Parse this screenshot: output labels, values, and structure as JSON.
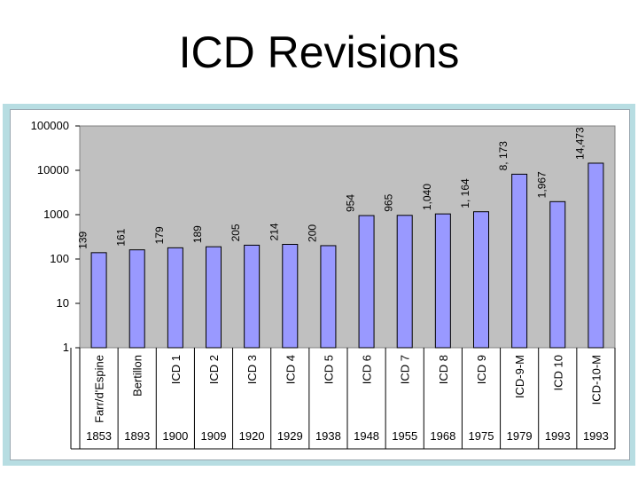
{
  "slide": {
    "title": "ICD Revisions"
  },
  "chart_data": {
    "type": "bar",
    "y_scale": "log",
    "ylim": [
      1,
      100000
    ],
    "grid": false,
    "legend": "none",
    "y_ticks": [
      "100000",
      "10000",
      "1000",
      "100",
      "10",
      "1"
    ],
    "categories": [
      "Farr/d'Espine",
      "Bertillon",
      "ICD 1",
      "ICD 2",
      "ICD 3",
      "ICD 4",
      "ICD 5",
      "ICD 6",
      "ICD 7",
      "ICD 8",
      "ICD 9",
      "ICD-9-M",
      "ICD 10",
      "ICD-10-M"
    ],
    "years": [
      "1853",
      "1893",
      "1900",
      "1909",
      "1920",
      "1929",
      "1938",
      "1948",
      "1955",
      "1968",
      "1975",
      "1979",
      "1993",
      "1993"
    ],
    "values": [
      139,
      161,
      179,
      189,
      205,
      214,
      200,
      954,
      965,
      1040,
      1164,
      8173,
      1967,
      14473
    ],
    "value_labels": [
      "139",
      "161",
      "179",
      "189",
      "205",
      "214",
      "200",
      "954",
      "965",
      "1,040",
      "1, 164",
      "8, 173",
      "1,967",
      "14,473"
    ],
    "colors": {
      "bar": "#9999ff",
      "plot_background": "#c0c0c0"
    }
  }
}
